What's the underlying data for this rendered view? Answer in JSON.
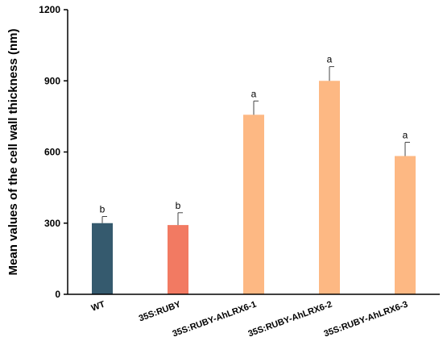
{
  "chart_data": {
    "type": "bar",
    "title": "",
    "xlabel": "",
    "ylabel": "Mean values of the cell wall thickness (nm)",
    "ylim": [
      0,
      1200
    ],
    "yticks": [
      0,
      300,
      600,
      900,
      1200
    ],
    "grid": false,
    "legend": "none",
    "categories": [
      "WT",
      "35S:RUBY",
      "35S:RUBY-AhLRX6-1",
      "35S:RUBY-AhLRX6-2",
      "35S:RUBY-AhLRX6-3"
    ],
    "values": [
      300,
      292,
      757,
      900,
      583
    ],
    "errors": [
      28,
      52,
      58,
      60,
      58
    ],
    "significance": [
      "b",
      "b",
      "a",
      "a",
      "a"
    ],
    "colors": [
      "#355A6E",
      "#F27A62",
      "#FDB883",
      "#FDB883",
      "#FDB883"
    ]
  }
}
